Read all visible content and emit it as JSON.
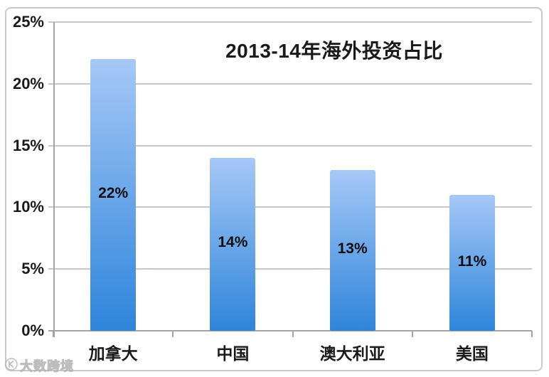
{
  "chart": {
    "watermark": {
      "text": "大数跨境",
      "icon": "brand-logo-icon"
    }
  },
  "chart_data": {
    "type": "bar",
    "title": "2013-14年海外投资占比",
    "categories": [
      "加拿大",
      "中国",
      "澳大利亚",
      "美国"
    ],
    "values": [
      22,
      14,
      13,
      11
    ],
    "data_labels": [
      "22%",
      "14%",
      "13%",
      "11%"
    ],
    "xlabel": "",
    "ylabel": "",
    "ylim": [
      0,
      25
    ],
    "y_ticks": [
      {
        "label": "0%",
        "value": 0
      },
      {
        "label": "5%",
        "value": 5
      },
      {
        "label": "10%",
        "value": 10
      },
      {
        "label": "15%",
        "value": 15
      },
      {
        "label": "20%",
        "value": 20
      },
      {
        "label": "25%",
        "value": 25
      }
    ],
    "grid": true,
    "legend": false,
    "data_label_position": "inside-center",
    "colors": {
      "bar_gradient_top": "#a6c8f7",
      "bar_gradient_bottom": "#2e85db",
      "gridline": "#c8c8c8",
      "axis": "#a3a3a3",
      "text": "#1a1a1a",
      "frame_border": "#c9c9c9",
      "background": "#ffffff"
    }
  }
}
